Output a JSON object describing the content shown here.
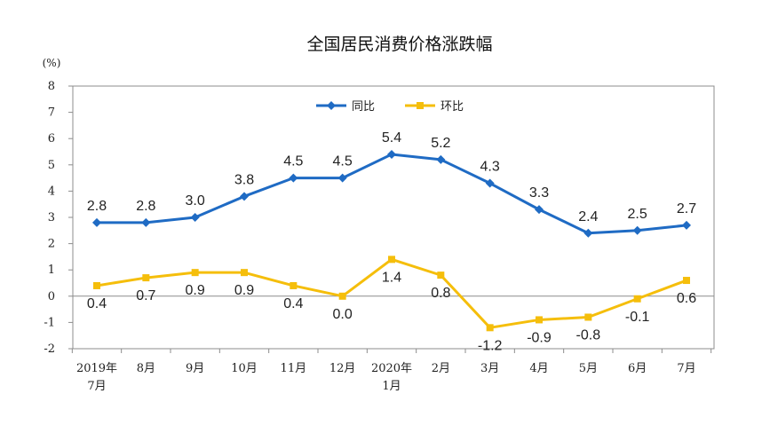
{
  "chart_data": {
    "type": "line",
    "title": "全国居民消费价格涨跌幅",
    "ylabel": "(%)",
    "xlabel": "",
    "ylim": [
      -2,
      8
    ],
    "yticks": [
      8,
      7,
      6,
      5,
      4,
      3,
      2,
      1,
      0,
      -1,
      -2
    ],
    "categories": [
      [
        "2019年",
        "7月"
      ],
      [
        "8月"
      ],
      [
        "9月"
      ],
      [
        "10月"
      ],
      [
        "11月"
      ],
      [
        "12月"
      ],
      [
        "2020年",
        "1月"
      ],
      [
        "2月"
      ],
      [
        "3月"
      ],
      [
        "4月"
      ],
      [
        "5月"
      ],
      [
        "6月"
      ],
      [
        "7月"
      ]
    ],
    "legend_position": "top-center",
    "grid": false,
    "series": [
      {
        "name": "同比",
        "color": "#1f6bc4",
        "marker": "diamond",
        "values": [
          2.8,
          2.8,
          3.0,
          3.8,
          4.5,
          4.5,
          5.4,
          5.2,
          4.3,
          3.3,
          2.4,
          2.5,
          2.7
        ],
        "labels": [
          "2.8",
          "2.8",
          "3.0",
          "3.8",
          "4.5",
          "4.5",
          "5.4",
          "5.2",
          "4.3",
          "3.3",
          "2.4",
          "2.5",
          "2.7"
        ]
      },
      {
        "name": "环比",
        "color": "#f5be0b",
        "marker": "square",
        "values": [
          0.4,
          0.7,
          0.9,
          0.9,
          0.4,
          0.0,
          1.4,
          0.8,
          -1.2,
          -0.9,
          -0.8,
          -0.1,
          0.6
        ],
        "labels": [
          "0.4",
          "0.7",
          "0.9",
          "0.9",
          "0.4",
          "0.0",
          "1.4",
          "0.8",
          "-1.2",
          "-0.9",
          "-0.8",
          "-0.1",
          "0.6"
        ]
      }
    ]
  }
}
